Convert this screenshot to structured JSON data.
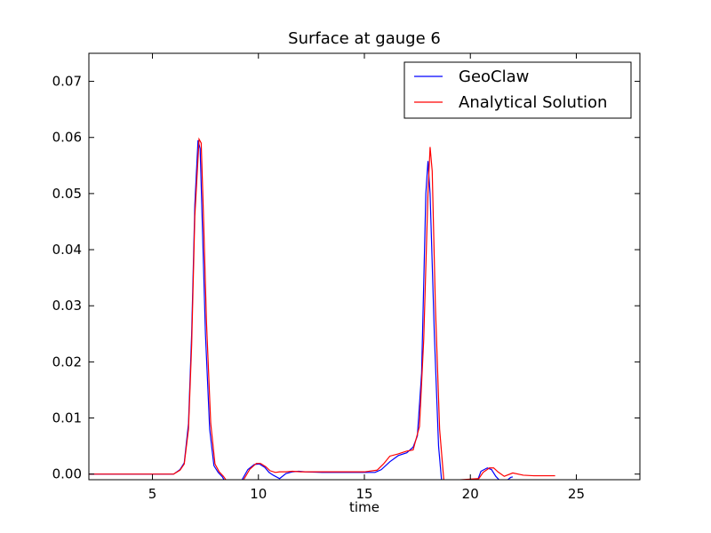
{
  "chart_data": {
    "type": "line",
    "title": "Surface at gauge 6",
    "xlabel": "time",
    "ylabel": "",
    "xlim": [
      2,
      28
    ],
    "ylim": [
      -0.001,
      0.075
    ],
    "xticks": [
      5,
      10,
      15,
      20,
      25
    ],
    "yticks": [
      0.0,
      0.01,
      0.02,
      0.03,
      0.04,
      0.05,
      0.06,
      0.07
    ],
    "ytick_labels": [
      "0.00",
      "0.01",
      "0.02",
      "0.03",
      "0.04",
      "0.05",
      "0.06",
      "0.07"
    ],
    "grid": false,
    "legend": "top-right",
    "series": [
      {
        "name": "GeoClaw",
        "color": "#0000ff",
        "x": [
          2,
          4,
          6,
          6.3,
          6.5,
          6.7,
          6.85,
          7.0,
          7.15,
          7.25,
          7.35,
          7.5,
          7.7,
          7.9,
          8.1,
          8.3,
          8.45,
          9.2,
          9.5,
          9.8,
          10.05,
          10.3,
          10.5,
          10.7,
          11.0,
          11.3,
          11.6,
          11.9,
          12.2,
          13.0,
          14.0,
          15.0,
          15.5,
          15.8,
          16.2,
          16.6,
          17.0,
          17.3,
          17.5,
          17.7,
          17.9,
          18.0,
          18.1,
          18.3,
          18.5,
          18.65,
          20.3,
          20.5,
          20.8,
          21.0,
          21.2,
          21.4,
          21.6,
          21.9,
          22.0
        ],
        "values": [
          0.0,
          0.0,
          0.0,
          0.0008,
          0.002,
          0.009,
          0.025,
          0.048,
          0.0595,
          0.058,
          0.045,
          0.025,
          0.008,
          0.0015,
          0.0003,
          -0.0005,
          -0.0015,
          -0.0012,
          0.0008,
          0.0017,
          0.0018,
          0.0012,
          0.0003,
          -0.0002,
          -0.0008,
          0.0001,
          0.0004,
          0.0005,
          0.0004,
          0.0003,
          0.0003,
          0.0003,
          0.0003,
          0.0008,
          0.0022,
          0.0033,
          0.0038,
          0.0048,
          0.0068,
          0.018,
          0.05,
          0.0558,
          0.05,
          0.025,
          0.005,
          -0.0015,
          -0.0015,
          0.0005,
          0.0011,
          0.0008,
          -0.0004,
          -0.0012,
          -0.0015,
          -0.0006,
          -0.0005
        ]
      },
      {
        "name": "Analytical Solution",
        "color": "#ff0000",
        "x": [
          2,
          4,
          6,
          6.3,
          6.5,
          6.7,
          6.85,
          7.0,
          7.2,
          7.3,
          7.4,
          7.55,
          7.75,
          7.95,
          8.15,
          8.35,
          8.5,
          9.3,
          9.6,
          9.9,
          10.1,
          10.35,
          10.55,
          10.8,
          11.0,
          11.3,
          11.6,
          12.0,
          13.0,
          14.0,
          15.0,
          15.6,
          15.9,
          16.2,
          16.6,
          17.0,
          17.3,
          17.6,
          17.8,
          18.0,
          18.1,
          18.2,
          18.35,
          18.55,
          18.75,
          20.4,
          20.6,
          20.9,
          21.1,
          21.3,
          21.6,
          22.0,
          22.5,
          23.0,
          24.0
        ],
        "values": [
          0.0,
          0.0,
          0.0,
          0.0007,
          0.0018,
          0.008,
          0.023,
          0.046,
          0.0597,
          0.059,
          0.047,
          0.027,
          0.009,
          0.0018,
          0.0004,
          -0.0004,
          -0.0012,
          -0.001,
          0.0009,
          0.0019,
          0.0019,
          0.0013,
          0.0006,
          0.0003,
          0.0004,
          0.0004,
          0.0005,
          0.0004,
          0.0004,
          0.0004,
          0.0004,
          0.0007,
          0.0018,
          0.0032,
          0.0036,
          0.0041,
          0.0043,
          0.0085,
          0.024,
          0.05,
          0.0583,
          0.054,
          0.03,
          0.008,
          -0.0012,
          -0.0008,
          0.0003,
          0.0011,
          0.0011,
          0.0004,
          -0.0004,
          0.0002,
          -0.0002,
          -0.0003,
          -0.0003
        ]
      }
    ]
  }
}
